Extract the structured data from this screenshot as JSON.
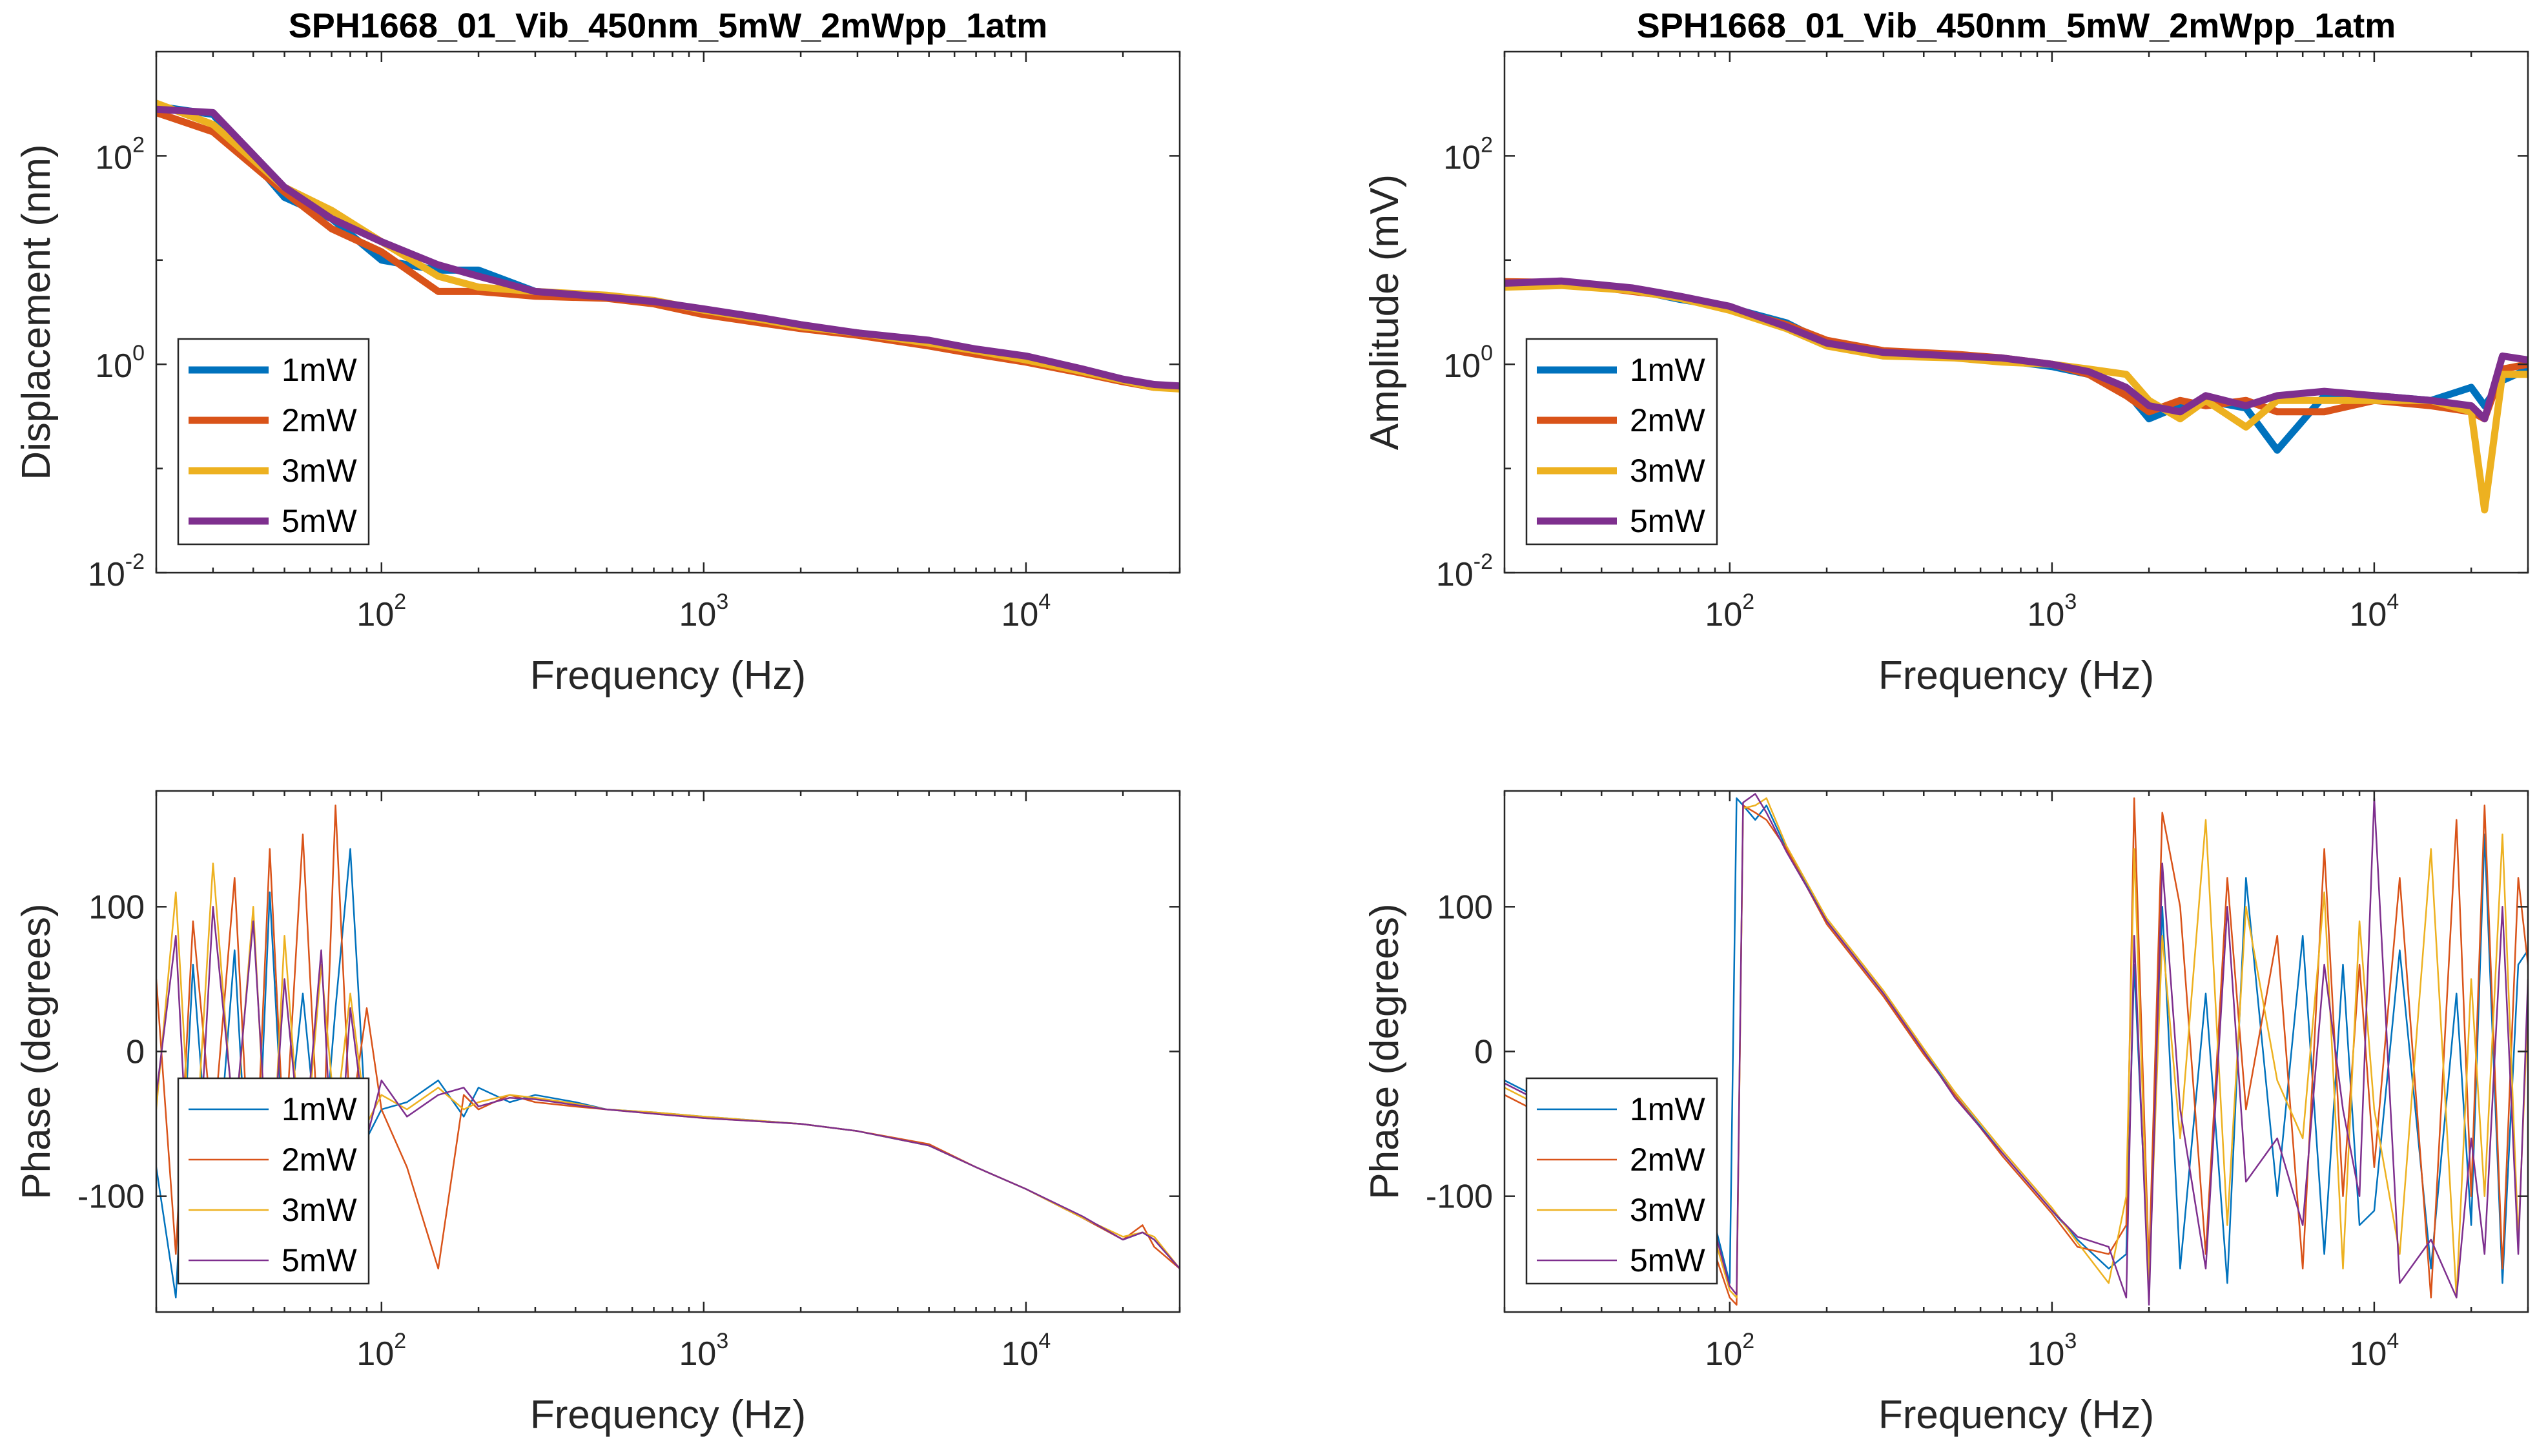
{
  "chart_data": [
    {
      "type": "line",
      "title": "SPH1668_01_Vib_450nm_5mW_2mWpp_1atm",
      "xlabel": "Frequency (Hz)",
      "ylabel": "Displacement (nm)",
      "xscale": "log",
      "yscale": "log",
      "xlim": [
        20,
        30000
      ],
      "ylim": [
        0.01,
        1000
      ],
      "xticks": [
        {
          "value": 100,
          "base": "10",
          "exp": "2"
        },
        {
          "value": 1000,
          "base": "10",
          "exp": "3"
        },
        {
          "value": 10000,
          "base": "10",
          "exp": "4"
        }
      ],
      "yticks": [
        {
          "value": 0.01,
          "base": "10",
          "exp": "-2"
        },
        {
          "value": 1,
          "base": "10",
          "exp": "0"
        },
        {
          "value": 100,
          "base": "10",
          "exp": "2"
        }
      ],
      "legend": "bottom-left",
      "line_style": "thick",
      "x": [
        20,
        30,
        50,
        70,
        100,
        150,
        200,
        300,
        500,
        700,
        1000,
        1500,
        2000,
        3000,
        5000,
        7000,
        10000,
        15000,
        20000,
        25000,
        30000
      ],
      "series": [
        {
          "name": "1mW",
          "color": "#0072BD",
          "values": [
            300,
            250,
            40,
            25,
            10,
            8,
            8,
            5,
            4.5,
            4,
            3.2,
            2.6,
            2.3,
            2.0,
            1.6,
            1.3,
            1.1,
            0.85,
            0.7,
            0.62,
            0.6
          ]
        },
        {
          "name": "2mW",
          "color": "#D95319",
          "values": [
            260,
            170,
            45,
            20,
            12,
            5,
            5,
            4.5,
            4.3,
            3.8,
            3.0,
            2.5,
            2.2,
            1.9,
            1.5,
            1.25,
            1.05,
            0.82,
            0.68,
            0.6,
            0.6
          ]
        },
        {
          "name": "3mW",
          "color": "#EDB120",
          "values": [
            320,
            200,
            50,
            30,
            15,
            7,
            5.5,
            5,
            4.6,
            4.1,
            3.3,
            2.7,
            2.3,
            2.0,
            1.6,
            1.35,
            1.1,
            0.85,
            0.7,
            0.6,
            0.58
          ]
        },
        {
          "name": "5mW",
          "color": "#7E2F8E",
          "values": [
            280,
            260,
            50,
            25,
            15,
            9,
            7,
            5,
            4.4,
            4.0,
            3.4,
            2.8,
            2.4,
            2.0,
            1.7,
            1.4,
            1.2,
            0.9,
            0.72,
            0.64,
            0.62
          ]
        }
      ]
    },
    {
      "type": "line",
      "title": "SPH1668_01_Vib_450nm_5mW_2mWpp_1atm",
      "xlabel": "Frequency (Hz)",
      "ylabel": "Amplitude (mV)",
      "xscale": "log",
      "yscale": "log",
      "xlim": [
        20,
        30000
      ],
      "ylim": [
        0.01,
        1000
      ],
      "xticks": [
        {
          "value": 100,
          "base": "10",
          "exp": "2"
        },
        {
          "value": 1000,
          "base": "10",
          "exp": "3"
        },
        {
          "value": 10000,
          "base": "10",
          "exp": "4"
        }
      ],
      "yticks": [
        {
          "value": 0.01,
          "base": "10",
          "exp": "-2"
        },
        {
          "value": 1,
          "base": "10",
          "exp": "0"
        },
        {
          "value": 100,
          "base": "10",
          "exp": "2"
        }
      ],
      "legend": "bottom-left",
      "line_style": "thick",
      "x": [
        20,
        30,
        50,
        70,
        100,
        150,
        200,
        300,
        500,
        700,
        1000,
        1300,
        1700,
        2000,
        2500,
        3000,
        4000,
        5000,
        7000,
        10000,
        15000,
        20000,
        22000,
        25000,
        30000
      ],
      "series": [
        {
          "name": "1mW",
          "color": "#0072BD",
          "values": [
            6,
            6.2,
            5.2,
            4.2,
            3.5,
            2.5,
            1.6,
            1.3,
            1.2,
            1.1,
            0.95,
            0.8,
            0.55,
            0.3,
            0.4,
            0.45,
            0.38,
            0.15,
            0.5,
            0.5,
            0.45,
            0.6,
            0.4,
            0.7,
            0.9
          ]
        },
        {
          "name": "2mW",
          "color": "#D95319",
          "values": [
            6.2,
            6.1,
            5.0,
            4.4,
            3.4,
            2.4,
            1.7,
            1.35,
            1.25,
            1.15,
            1.0,
            0.8,
            0.5,
            0.35,
            0.45,
            0.4,
            0.45,
            0.35,
            0.35,
            0.45,
            0.4,
            0.35,
            0.3,
            0.9,
            1.0
          ]
        },
        {
          "name": "3mW",
          "color": "#EDB120",
          "values": [
            5.5,
            5.7,
            5.1,
            4.3,
            3.3,
            2.2,
            1.5,
            1.2,
            1.15,
            1.05,
            1.0,
            0.9,
            0.8,
            0.45,
            0.3,
            0.45,
            0.25,
            0.45,
            0.45,
            0.45,
            0.45,
            0.35,
            0.04,
            0.8,
            0.8
          ]
        },
        {
          "name": "5mW",
          "color": "#7E2F8E",
          "values": [
            6,
            6.3,
            5.4,
            4.5,
            3.6,
            2.3,
            1.6,
            1.3,
            1.2,
            1.15,
            1.0,
            0.85,
            0.6,
            0.4,
            0.35,
            0.5,
            0.4,
            0.5,
            0.55,
            0.5,
            0.45,
            0.4,
            0.3,
            1.2,
            1.1
          ]
        }
      ]
    },
    {
      "type": "line",
      "title": "",
      "xlabel": "Frequency (Hz)",
      "ylabel": "Phase (degrees)",
      "xscale": "log",
      "yscale": "linear",
      "xlim": [
        20,
        30000
      ],
      "ylim": [
        -180,
        180
      ],
      "xticks": [
        {
          "value": 100,
          "base": "10",
          "exp": "2"
        },
        {
          "value": 1000,
          "base": "10",
          "exp": "3"
        },
        {
          "value": 10000,
          "base": "10",
          "exp": "4"
        }
      ],
      "yticks": [
        {
          "value": -100,
          "label": "-100"
        },
        {
          "value": 0,
          "label": "0"
        },
        {
          "value": 100,
          "label": "100"
        }
      ],
      "legend": "bottom-left",
      "line_style": "thin",
      "x": [
        20,
        23,
        26,
        30,
        35,
        40,
        45,
        50,
        57,
        65,
        72,
        80,
        90,
        100,
        120,
        150,
        180,
        200,
        250,
        300,
        400,
        500,
        700,
        1000,
        2000,
        3000,
        5000,
        7000,
        10000,
        15000,
        20000,
        23000,
        25000,
        30000
      ],
      "series": [
        {
          "name": "1mW",
          "color": "#0072BD",
          "values": [
            -80,
            -170,
            60,
            -120,
            70,
            -160,
            110,
            -80,
            40,
            -90,
            30,
            140,
            -60,
            -40,
            -35,
            -20,
            -45,
            -25,
            -35,
            -30,
            -35,
            -40,
            -42,
            -45,
            -50,
            -55,
            -65,
            -80,
            -95,
            -115,
            -130,
            -125,
            -130,
            -150
          ]
        },
        {
          "name": "2mW",
          "color": "#D95319",
          "values": [
            50,
            -140,
            90,
            -60,
            120,
            -130,
            140,
            -70,
            150,
            -100,
            170,
            -50,
            30,
            -40,
            -80,
            -150,
            -30,
            -40,
            -30,
            -35,
            -38,
            -40,
            -43,
            -46,
            -50,
            -55,
            -64,
            -80,
            -95,
            -115,
            -130,
            -120,
            -135,
            -150
          ]
        },
        {
          "name": "3mW",
          "color": "#EDB120",
          "values": [
            -40,
            110,
            -100,
            130,
            -60,
            100,
            -120,
            80,
            -90,
            60,
            -50,
            40,
            -50,
            -30,
            -40,
            -25,
            -40,
            -35,
            -30,
            -32,
            -36,
            -40,
            -42,
            -45,
            -50,
            -55,
            -65,
            -80,
            -95,
            -115,
            -128,
            -125,
            -128,
            -150
          ]
        },
        {
          "name": "5mW",
          "color": "#7E2F8E",
          "values": [
            -30,
            80,
            -150,
            100,
            -50,
            90,
            -100,
            50,
            -80,
            70,
            -120,
            30,
            -60,
            -20,
            -45,
            -30,
            -25,
            -38,
            -32,
            -33,
            -37,
            -40,
            -43,
            -46,
            -50,
            -55,
            -65,
            -80,
            -95,
            -114,
            -130,
            -125,
            -130,
            -150
          ]
        }
      ]
    },
    {
      "type": "line",
      "title": "",
      "xlabel": "Frequency (Hz)",
      "ylabel": "Phase (degrees)",
      "xscale": "log",
      "yscale": "linear",
      "xlim": [
        20,
        30000
      ],
      "ylim": [
        -180,
        180
      ],
      "xticks": [
        {
          "value": 100,
          "base": "10",
          "exp": "2"
        },
        {
          "value": 1000,
          "base": "10",
          "exp": "3"
        },
        {
          "value": 10000,
          "base": "10",
          "exp": "4"
        }
      ],
      "yticks": [
        {
          "value": -100,
          "label": "-100"
        },
        {
          "value": 0,
          "label": "0"
        },
        {
          "value": 100,
          "label": "100"
        }
      ],
      "legend": "bottom-left",
      "line_style": "thin",
      "x": [
        20,
        30,
        50,
        70,
        90,
        100,
        105,
        110,
        120,
        130,
        150,
        200,
        300,
        400,
        500,
        700,
        1000,
        1200,
        1500,
        1700,
        1800,
        2000,
        2200,
        2500,
        3000,
        3500,
        4000,
        5000,
        6000,
        7000,
        8000,
        9000,
        10000,
        12000,
        15000,
        18000,
        20000,
        22000,
        25000,
        28000,
        30000
      ],
      "series": [
        {
          "name": "1mW",
          "color": "#0072BD",
          "values": [
            -20,
            -40,
            -60,
            -90,
            -120,
            -160,
            175,
            170,
            160,
            170,
            140,
            90,
            40,
            0,
            -30,
            -70,
            -110,
            -130,
            -150,
            -140,
            60,
            -160,
            100,
            -150,
            40,
            -160,
            120,
            -100,
            80,
            -140,
            60,
            -120,
            -110,
            70,
            -150,
            40,
            -120,
            150,
            -160,
            60,
            70
          ]
        },
        {
          "name": "2mW",
          "color": "#D95319",
          "values": [
            -30,
            -50,
            -70,
            -100,
            -140,
            -170,
            -175,
            170,
            165,
            160,
            140,
            88,
            38,
            -2,
            -30,
            -72,
            -112,
            -135,
            -140,
            -120,
            175,
            -150,
            165,
            100,
            -140,
            120,
            -40,
            80,
            -150,
            140,
            -100,
            60,
            -80,
            120,
            -170,
            160,
            -100,
            170,
            -150,
            120,
            60
          ]
        },
        {
          "name": "3mW",
          "color": "#EDB120",
          "values": [
            -25,
            -45,
            -65,
            -95,
            -130,
            -165,
            -170,
            168,
            170,
            175,
            142,
            92,
            42,
            2,
            -28,
            -68,
            -108,
            -132,
            -160,
            -100,
            140,
            -160,
            80,
            -60,
            160,
            -120,
            100,
            -20,
            -60,
            110,
            -150,
            90,
            -40,
            -140,
            140,
            -170,
            50,
            -100,
            150,
            -130,
            30
          ]
        },
        {
          "name": "5mW",
          "color": "#7E2F8E",
          "values": [
            -22,
            -42,
            -62,
            -92,
            -125,
            -162,
            -168,
            172,
            178,
            165,
            138,
            90,
            40,
            0,
            -32,
            -70,
            -110,
            -128,
            -135,
            -170,
            80,
            -175,
            130,
            -40,
            -150,
            100,
            -90,
            -60,
            -120,
            60,
            -40,
            -100,
            175,
            -160,
            -130,
            -170,
            -60,
            -140,
            100,
            -140,
            50
          ]
        }
      ]
    }
  ]
}
